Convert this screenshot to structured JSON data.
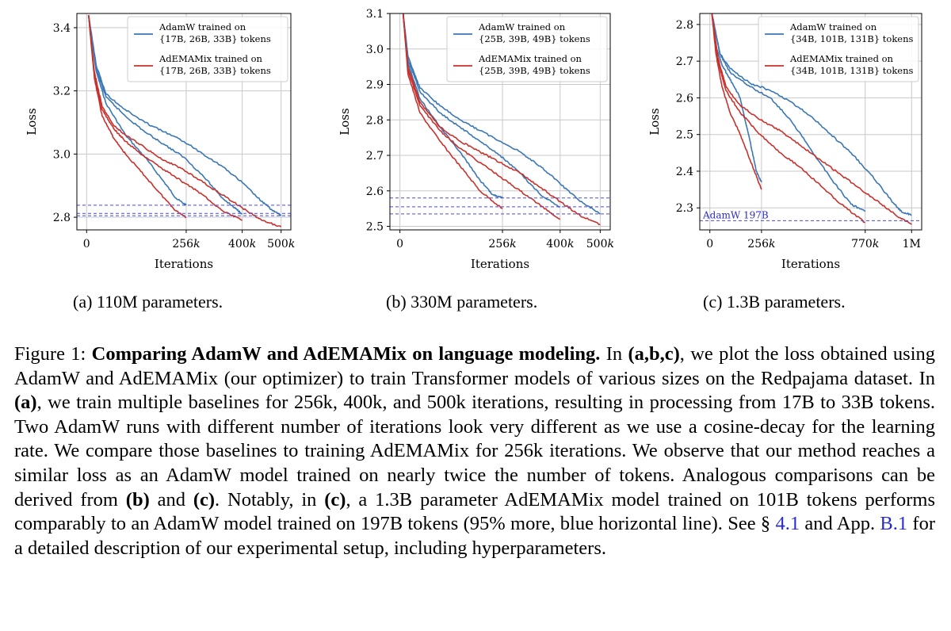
{
  "chart_data": [
    {
      "type": "line",
      "xlabel": "Iterations",
      "ylabel": "Loss",
      "xlim": [
        -25000,
        525000
      ],
      "ylim": [
        2.76,
        3.445
      ],
      "xticks": [
        0,
        256000,
        400000,
        500000
      ],
      "xtick_labels": [
        "0",
        "256k",
        "400k",
        "500k"
      ],
      "yticks": [
        2.8,
        3.0,
        3.2,
        3.4
      ],
      "ytick_labels": [
        "2.8",
        "3.0",
        "3.2",
        "3.4"
      ],
      "grid": true,
      "legend_position": "top-right",
      "legend": [
        {
          "line1": "AdamW trained on",
          "line2": "{17B, 26B, 33B} tokens",
          "color": "#3a77b5"
        },
        {
          "line1": "AdEMAMix trained on",
          "line2": "{17B, 26B, 33B} tokens",
          "color": "#c9312c"
        }
      ],
      "reference_lines": [
        2.838,
        2.812,
        2.805
      ],
      "series": [
        {
          "group": "AdamW",
          "color": "#3a77b5",
          "end_x": 256000,
          "x": [
            5000,
            25000,
            50000,
            100000,
            150000,
            200000,
            230000,
            256000
          ],
          "y": [
            3.44,
            3.26,
            3.16,
            3.06,
            2.99,
            2.91,
            2.86,
            2.838
          ]
        },
        {
          "group": "AdamW",
          "color": "#3a77b5",
          "end_x": 400000,
          "x": [
            5000,
            25000,
            50000,
            100000,
            150000,
            200000,
            250000,
            300000,
            350000,
            380000,
            400000
          ],
          "y": [
            3.44,
            3.27,
            3.18,
            3.12,
            3.07,
            3.03,
            2.99,
            2.93,
            2.86,
            2.83,
            2.812
          ]
        },
        {
          "group": "AdamW",
          "color": "#3a77b5",
          "end_x": 500000,
          "x": [
            5000,
            25000,
            50000,
            100000,
            150000,
            200000,
            250000,
            300000,
            350000,
            400000,
            450000,
            480000,
            500000
          ],
          "y": [
            3.44,
            3.28,
            3.19,
            3.14,
            3.1,
            3.07,
            3.04,
            3.0,
            2.96,
            2.91,
            2.85,
            2.82,
            2.805
          ]
        },
        {
          "group": "AdEMAMix",
          "color": "#c9312c",
          "end_x": 256000,
          "x": [
            5000,
            20000,
            40000,
            70000,
            100000,
            150000,
            200000,
            230000,
            256000
          ],
          "y": [
            3.44,
            3.24,
            3.12,
            3.05,
            3.0,
            2.93,
            2.86,
            2.82,
            2.8
          ]
        },
        {
          "group": "AdEMAMix",
          "color": "#c9312c",
          "end_x": 400000,
          "x": [
            5000,
            20000,
            40000,
            70000,
            100000,
            150000,
            200000,
            250000,
            300000,
            350000,
            400000
          ],
          "y": [
            3.44,
            3.25,
            3.14,
            3.08,
            3.04,
            2.99,
            2.95,
            2.91,
            2.87,
            2.82,
            2.79
          ]
        },
        {
          "group": "AdEMAMix",
          "color": "#c9312c",
          "end_x": 500000,
          "x": [
            5000,
            20000,
            40000,
            70000,
            100000,
            150000,
            200000,
            250000,
            300000,
            350000,
            400000,
            450000,
            500000
          ],
          "y": [
            3.44,
            3.26,
            3.15,
            3.09,
            3.06,
            3.02,
            2.98,
            2.95,
            2.91,
            2.87,
            2.83,
            2.79,
            2.77
          ]
        }
      ]
    },
    {
      "type": "line",
      "xlabel": "Iterations",
      "ylabel": "Loss",
      "xlim": [
        -25000,
        525000
      ],
      "ylim": [
        2.49,
        3.1
      ],
      "xticks": [
        0,
        256000,
        400000,
        500000
      ],
      "xtick_labels": [
        "0",
        "256k",
        "400k",
        "500k"
      ],
      "yticks": [
        2.5,
        2.6,
        2.7,
        2.8,
        2.9,
        3.0,
        3.1
      ],
      "ytick_labels": [
        "2.5",
        "2.6",
        "2.7",
        "2.8",
        "2.9",
        "3.0",
        "3.1"
      ],
      "grid": true,
      "legend_position": "top-right",
      "legend": [
        {
          "line1": "AdamW trained on",
          "line2": "{25B, 39B, 49B} tokens",
          "color": "#3a77b5"
        },
        {
          "line1": "AdEMAMix trained on",
          "line2": "{25B, 39B, 49B} tokens",
          "color": "#c9312c"
        }
      ],
      "reference_lines": [
        2.58,
        2.555,
        2.535
      ],
      "series": [
        {
          "group": "AdamW",
          "color": "#3a77b5",
          "end_x": 256000,
          "x": [
            8000,
            20000,
            50000,
            100000,
            150000,
            200000,
            230000,
            256000
          ],
          "y": [
            3.1,
            2.96,
            2.86,
            2.78,
            2.71,
            2.63,
            2.59,
            2.58
          ]
        },
        {
          "group": "AdamW",
          "color": "#3a77b5",
          "end_x": 400000,
          "x": [
            8000,
            20000,
            50000,
            100000,
            150000,
            200000,
            250000,
            300000,
            350000,
            400000
          ],
          "y": [
            3.1,
            2.97,
            2.88,
            2.82,
            2.78,
            2.74,
            2.7,
            2.65,
            2.59,
            2.555
          ]
        },
        {
          "group": "AdamW",
          "color": "#3a77b5",
          "end_x": 500000,
          "x": [
            8000,
            20000,
            50000,
            100000,
            150000,
            200000,
            250000,
            300000,
            350000,
            400000,
            450000,
            500000
          ],
          "y": [
            3.1,
            2.98,
            2.89,
            2.84,
            2.8,
            2.77,
            2.74,
            2.71,
            2.67,
            2.62,
            2.57,
            2.535
          ]
        },
        {
          "group": "AdEMAMix",
          "color": "#c9312c",
          "end_x": 256000,
          "x": [
            8000,
            20000,
            50000,
            100000,
            150000,
            200000,
            256000
          ],
          "y": [
            3.1,
            2.93,
            2.82,
            2.74,
            2.67,
            2.6,
            2.55
          ]
        },
        {
          "group": "AdEMAMix",
          "color": "#c9312c",
          "end_x": 400000,
          "x": [
            8000,
            20000,
            50000,
            100000,
            150000,
            200000,
            250000,
            300000,
            350000,
            400000
          ],
          "y": [
            3.1,
            2.94,
            2.84,
            2.77,
            2.72,
            2.68,
            2.64,
            2.6,
            2.56,
            2.52
          ]
        },
        {
          "group": "AdEMAMix",
          "color": "#c9312c",
          "end_x": 500000,
          "x": [
            8000,
            20000,
            50000,
            100000,
            150000,
            200000,
            250000,
            300000,
            350000,
            400000,
            450000,
            500000
          ],
          "y": [
            3.1,
            2.95,
            2.85,
            2.78,
            2.74,
            2.71,
            2.68,
            2.65,
            2.61,
            2.57,
            2.53,
            2.505
          ]
        }
      ]
    },
    {
      "type": "line",
      "xlabel": "Iterations",
      "ylabel": "Loss",
      "xlim": [
        -50000,
        1050000
      ],
      "ylim": [
        2.24,
        2.83
      ],
      "xticks": [
        0,
        256000,
        770000,
        1000000
      ],
      "xtick_labels": [
        "0",
        "256k",
        "770k",
        "1M"
      ],
      "yticks": [
        2.3,
        2.4,
        2.5,
        2.6,
        2.7,
        2.8
      ],
      "ytick_labels": [
        "2.3",
        "2.4",
        "2.5",
        "2.6",
        "2.7",
        "2.8"
      ],
      "grid": true,
      "legend_position": "top-right",
      "legend": [
        {
          "line1": "AdamW trained on",
          "line2": "{34B, 101B, 131B} tokens",
          "color": "#3a77b5"
        },
        {
          "line1": "AdEMAMix trained on",
          "line2": "{34B, 101B, 131B} tokens",
          "color": "#c9312c"
        }
      ],
      "reference_lines": [
        2.265
      ],
      "reference_label": "AdamW 197B",
      "series": [
        {
          "group": "AdamW",
          "color": "#3a77b5",
          "end_x": 256000,
          "x": [
            10000,
            30000,
            60000,
            100000,
            150000,
            200000,
            230000,
            256000
          ],
          "y": [
            2.83,
            2.74,
            2.69,
            2.65,
            2.6,
            2.48,
            2.4,
            2.37
          ]
        },
        {
          "group": "AdamW",
          "color": "#3a77b5",
          "end_x": 770000,
          "x": [
            10000,
            50000,
            100000,
            200000,
            300000,
            400000,
            500000,
            600000,
            700000,
            770000
          ],
          "y": [
            2.83,
            2.72,
            2.67,
            2.63,
            2.6,
            2.54,
            2.46,
            2.38,
            2.31,
            2.29
          ]
        },
        {
          "group": "AdamW",
          "color": "#3a77b5",
          "end_x": 1000000,
          "x": [
            10000,
            50000,
            100000,
            200000,
            300000,
            400000,
            500000,
            600000,
            700000,
            800000,
            900000,
            950000,
            1000000
          ],
          "y": [
            2.83,
            2.72,
            2.68,
            2.64,
            2.62,
            2.59,
            2.55,
            2.5,
            2.45,
            2.39,
            2.32,
            2.29,
            2.28
          ]
        },
        {
          "group": "AdEMAMix",
          "color": "#c9312c",
          "end_x": 256000,
          "x": [
            10000,
            30000,
            60000,
            100000,
            150000,
            200000,
            256000
          ],
          "y": [
            2.83,
            2.72,
            2.63,
            2.56,
            2.5,
            2.43,
            2.35
          ]
        },
        {
          "group": "AdEMAMix",
          "color": "#c9312c",
          "end_x": 770000,
          "x": [
            10000,
            40000,
            80000,
            150000,
            250000,
            350000,
            450000,
            550000,
            650000,
            770000
          ],
          "y": [
            2.83,
            2.7,
            2.62,
            2.56,
            2.5,
            2.45,
            2.41,
            2.36,
            2.31,
            2.26
          ]
        },
        {
          "group": "AdEMAMix",
          "color": "#c9312c",
          "end_x": 1000000,
          "x": [
            10000,
            40000,
            80000,
            150000,
            250000,
            350000,
            450000,
            550000,
            650000,
            750000,
            850000,
            950000,
            1000000
          ],
          "y": [
            2.83,
            2.71,
            2.63,
            2.58,
            2.54,
            2.51,
            2.47,
            2.43,
            2.39,
            2.35,
            2.31,
            2.27,
            2.255
          ]
        }
      ]
    }
  ],
  "subcaptions": {
    "a": "(a) 110M parameters.",
    "b": "(b) 330M parameters.",
    "c": "(c) 1.3B parameters."
  },
  "caption": {
    "label": "Figure 1:",
    "title": "Comparing AdamW and AdEMAMix on language modeling.",
    "t1": " In ",
    "b1": "(a,b,c)",
    "t2": ", we plot the loss obtained using AdamW and AdEMAMix (our optimizer) to train Transformer models of various sizes on the Redpajama dataset. In ",
    "b2": "(a)",
    "t3": ", we train multiple baselines for 256k, 400k, and 500k iterations, resulting in processing from 17B to 33B tokens. Two AdamW runs with different number of iterations look very different as we use a cosine-decay for the learning rate. We compare those baselines to training AdEMAMix for 256k iterations. We observe that our method reaches a similar loss as an AdamW model trained on nearly twice the number of tokens. Analogous comparisons can be derived from ",
    "b3": "(b)",
    "t4": " and ",
    "b4": "(c)",
    "t5": ". Notably, in ",
    "b5": "(c)",
    "t6": ", a 1.3B parameter AdEMAMix model trained on 101B tokens performs comparably to an AdamW model trained on 197B tokens (95% more, blue horizontal line). See § ",
    "ref1": "4.1",
    "t7": " and App. ",
    "ref2": "B.1",
    "t8": " for a detailed description of our experimental setup, including hyperparameters."
  }
}
